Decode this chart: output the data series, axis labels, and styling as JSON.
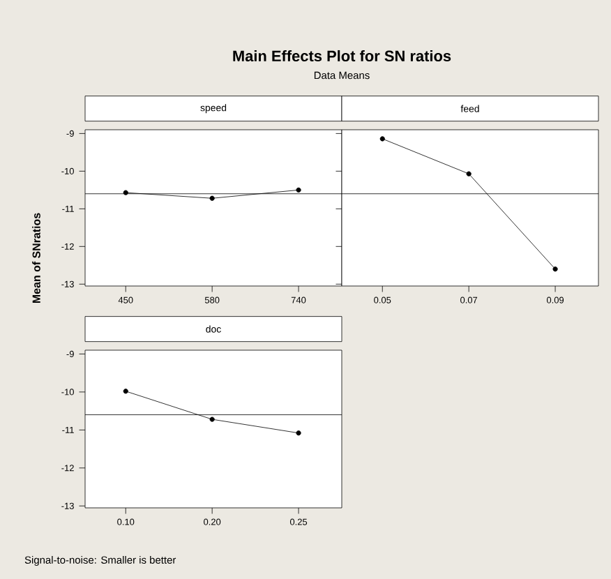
{
  "chart_data": [
    {
      "type": "other",
      "title": "Main Effects Plot for SN ratios",
      "subtitle": "Data Means",
      "annotations": [
        "Signal-to-noise: Smaller is better"
      ]
    },
    {
      "type": "line",
      "title": "speed",
      "ylabel": "Mean of SNratios",
      "categories": [
        "450",
        "580",
        "740"
      ],
      "values": [
        -10.57,
        -10.72,
        -10.5
      ],
      "color": "#000000",
      "marker": "circle",
      "line_style": "solid",
      "ylim": [
        -13.05,
        -8.9
      ],
      "yticks": [
        -9,
        -10,
        -11,
        -12,
        -13
      ],
      "ref_lines": [
        {
          "axis": "y",
          "value": -10.6,
          "color": "#000000"
        }
      ]
    },
    {
      "type": "line",
      "title": "feed",
      "categories": [
        "0.05",
        "0.07",
        "0.09"
      ],
      "values": [
        -9.14,
        -10.07,
        -12.6
      ],
      "color": "#000000",
      "marker": "circle",
      "line_style": "solid",
      "ylim": [
        -13.05,
        -8.9
      ],
      "yticks": [
        -9,
        -10,
        -11,
        -12,
        -13
      ],
      "tick_labels": "x",
      "ref_lines": [
        {
          "axis": "y",
          "value": -10.6,
          "color": "#000000"
        }
      ]
    },
    {
      "type": "line",
      "title": "doc",
      "categories": [
        "0.10",
        "0.20",
        "0.25"
      ],
      "values": [
        -9.98,
        -10.72,
        -11.08
      ],
      "color": "#000000",
      "marker": "circle",
      "line_style": "solid",
      "ylim": [
        -13.05,
        -8.9
      ],
      "yticks": [
        -9,
        -10,
        -11,
        -12,
        -13
      ],
      "ref_lines": [
        {
          "axis": "y",
          "value": -10.6,
          "color": "#000000"
        }
      ]
    }
  ]
}
